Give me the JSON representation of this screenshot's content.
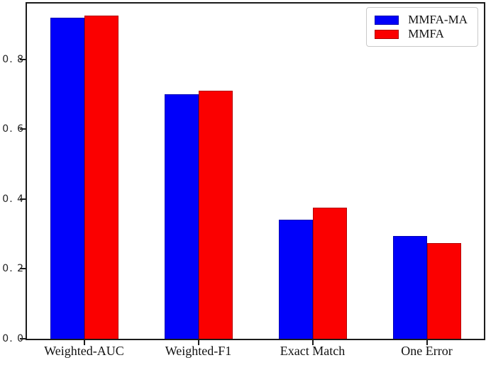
{
  "figure": {
    "background": "#ffffff"
  },
  "chart_data": {
    "type": "bar",
    "title": "",
    "xlabel": "",
    "ylabel": "",
    "categories": [
      "Weighted-AUC",
      "Weighted-F1",
      "Exact Match",
      "One Error"
    ],
    "series": [
      {
        "name": "MMFA-MA",
        "color": "#0000fa",
        "values": [
          0.92,
          0.7,
          0.34,
          0.295
        ]
      },
      {
        "name": "MMFA",
        "color": "#fb0000",
        "values": [
          0.925,
          0.71,
          0.375,
          0.275
        ]
      }
    ],
    "ylim": [
      0,
      0.96
    ],
    "yticks": [
      0.0,
      0.2,
      0.4,
      0.6,
      0.8
    ],
    "ytick_labels": [
      "0. 0",
      "0. 2",
      "0. 4",
      "0. 6",
      "0. 8"
    ],
    "grid": false,
    "legend": {
      "position": "upper right",
      "entries": [
        "MMFA-MA",
        "MMFA"
      ]
    },
    "colors": {
      "axis": "#1a1a1a",
      "text": "#111111",
      "legend_border": "#c9c9c9"
    }
  }
}
